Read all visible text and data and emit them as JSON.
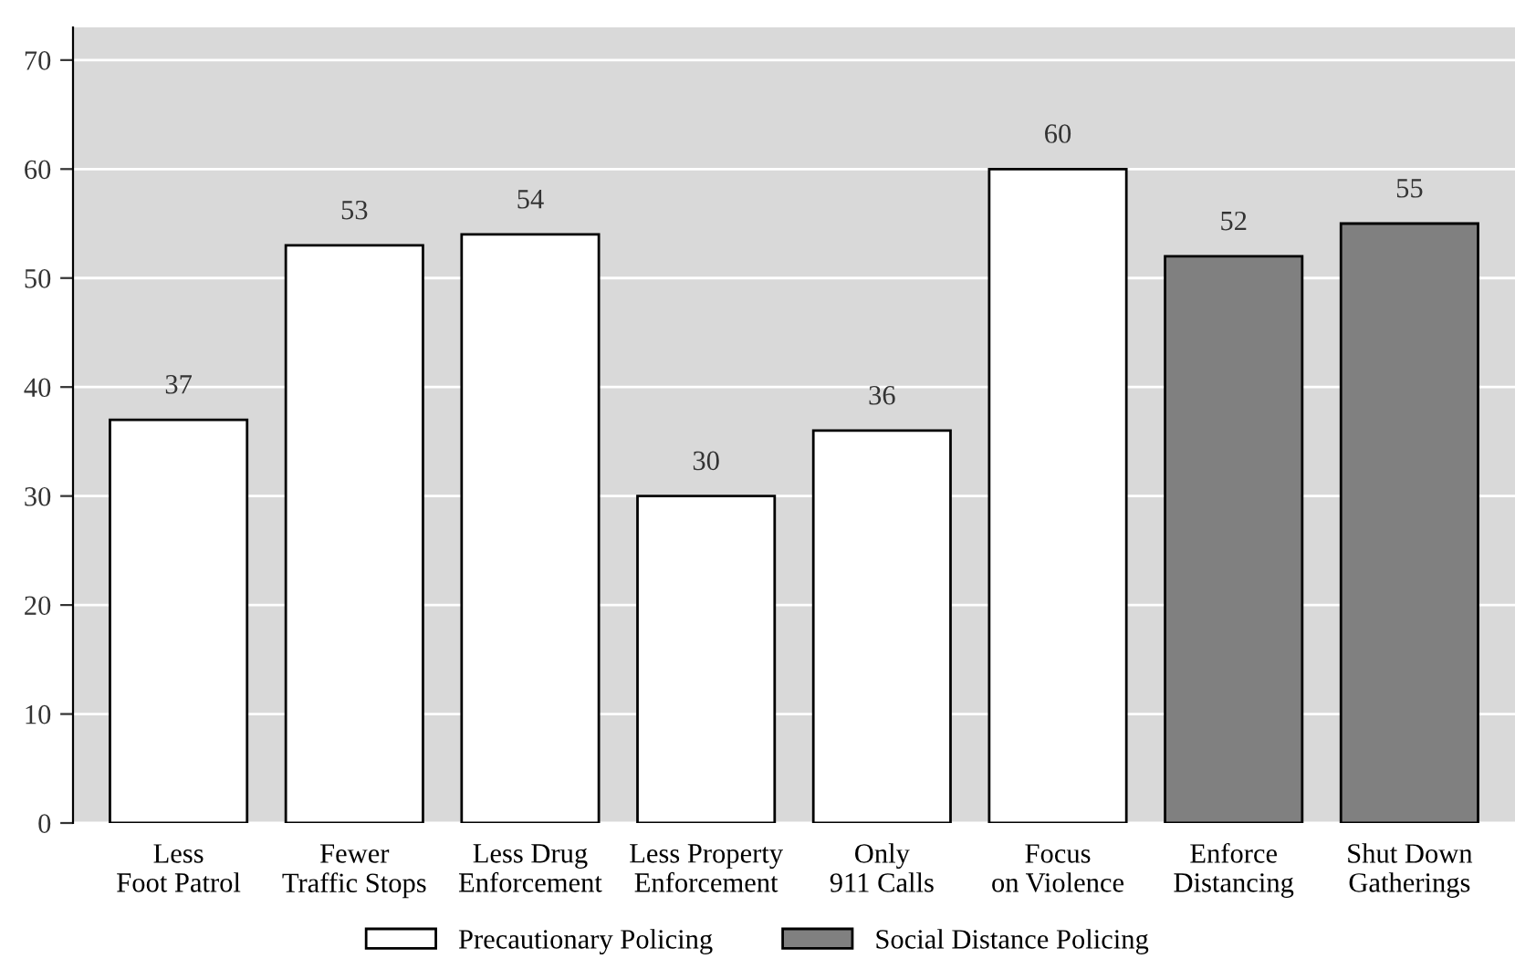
{
  "chart_data": {
    "type": "bar",
    "categories": [
      "Less\nFoot Patrol",
      "Fewer\nTraffic Stops",
      "Less Drug\nEnforcement",
      "Less Property\nEnforcement",
      "Only\n911 Calls",
      "Focus\non Violence",
      "Enforce\nDistancing",
      "Shut Down\nGatherings"
    ],
    "series": [
      {
        "name": "Precautionary Policing",
        "color": "#ffffff",
        "values": [
          37,
          53,
          54,
          30,
          36,
          60,
          null,
          null
        ]
      },
      {
        "name": "Social Distance Policing",
        "color": "#808080",
        "values": [
          null,
          null,
          null,
          null,
          null,
          null,
          52,
          55
        ]
      }
    ],
    "ylim": [
      0,
      73
    ],
    "yticks": [
      0,
      10,
      20,
      30,
      40,
      50,
      60,
      70
    ],
    "grid": "y",
    "legend": "bottom",
    "data_labels": true
  }
}
